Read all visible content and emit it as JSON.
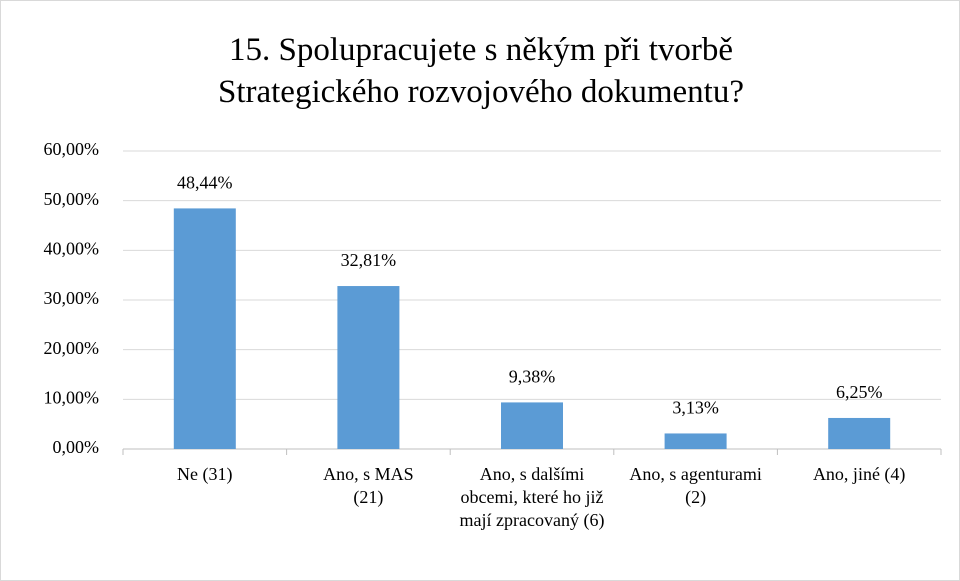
{
  "chart_data": {
    "type": "bar",
    "title": "15. Spolupracujete s někým při tvorbě Strategického rozvojového dokumentu?",
    "categories": [
      "Ne (31)",
      "Ano, s MAS (21)",
      "Ano, s dalšími obcemi, které ho již mají zpracovaný (6)",
      "Ano, s agenturami (2)",
      "Ano, jiné (4)"
    ],
    "values": [
      48.44,
      32.81,
      9.38,
      3.13,
      6.25
    ],
    "value_labels": [
      "48,44%",
      "32,81%",
      "9,38%",
      "3,13%",
      "6,25%"
    ],
    "color": "#5b9bd5",
    "ylim": [
      0,
      60
    ],
    "yticks": [
      {
        "value": 0,
        "label": "0,00%"
      },
      {
        "value": 10,
        "label": "10,00%"
      },
      {
        "value": 20,
        "label": "20,00%"
      },
      {
        "value": 30,
        "label": "30,00%"
      },
      {
        "value": 40,
        "label": "40,00%"
      },
      {
        "value": 50,
        "label": "50,00%"
      },
      {
        "value": 60,
        "label": "60,00%"
      }
    ],
    "grid": true
  }
}
